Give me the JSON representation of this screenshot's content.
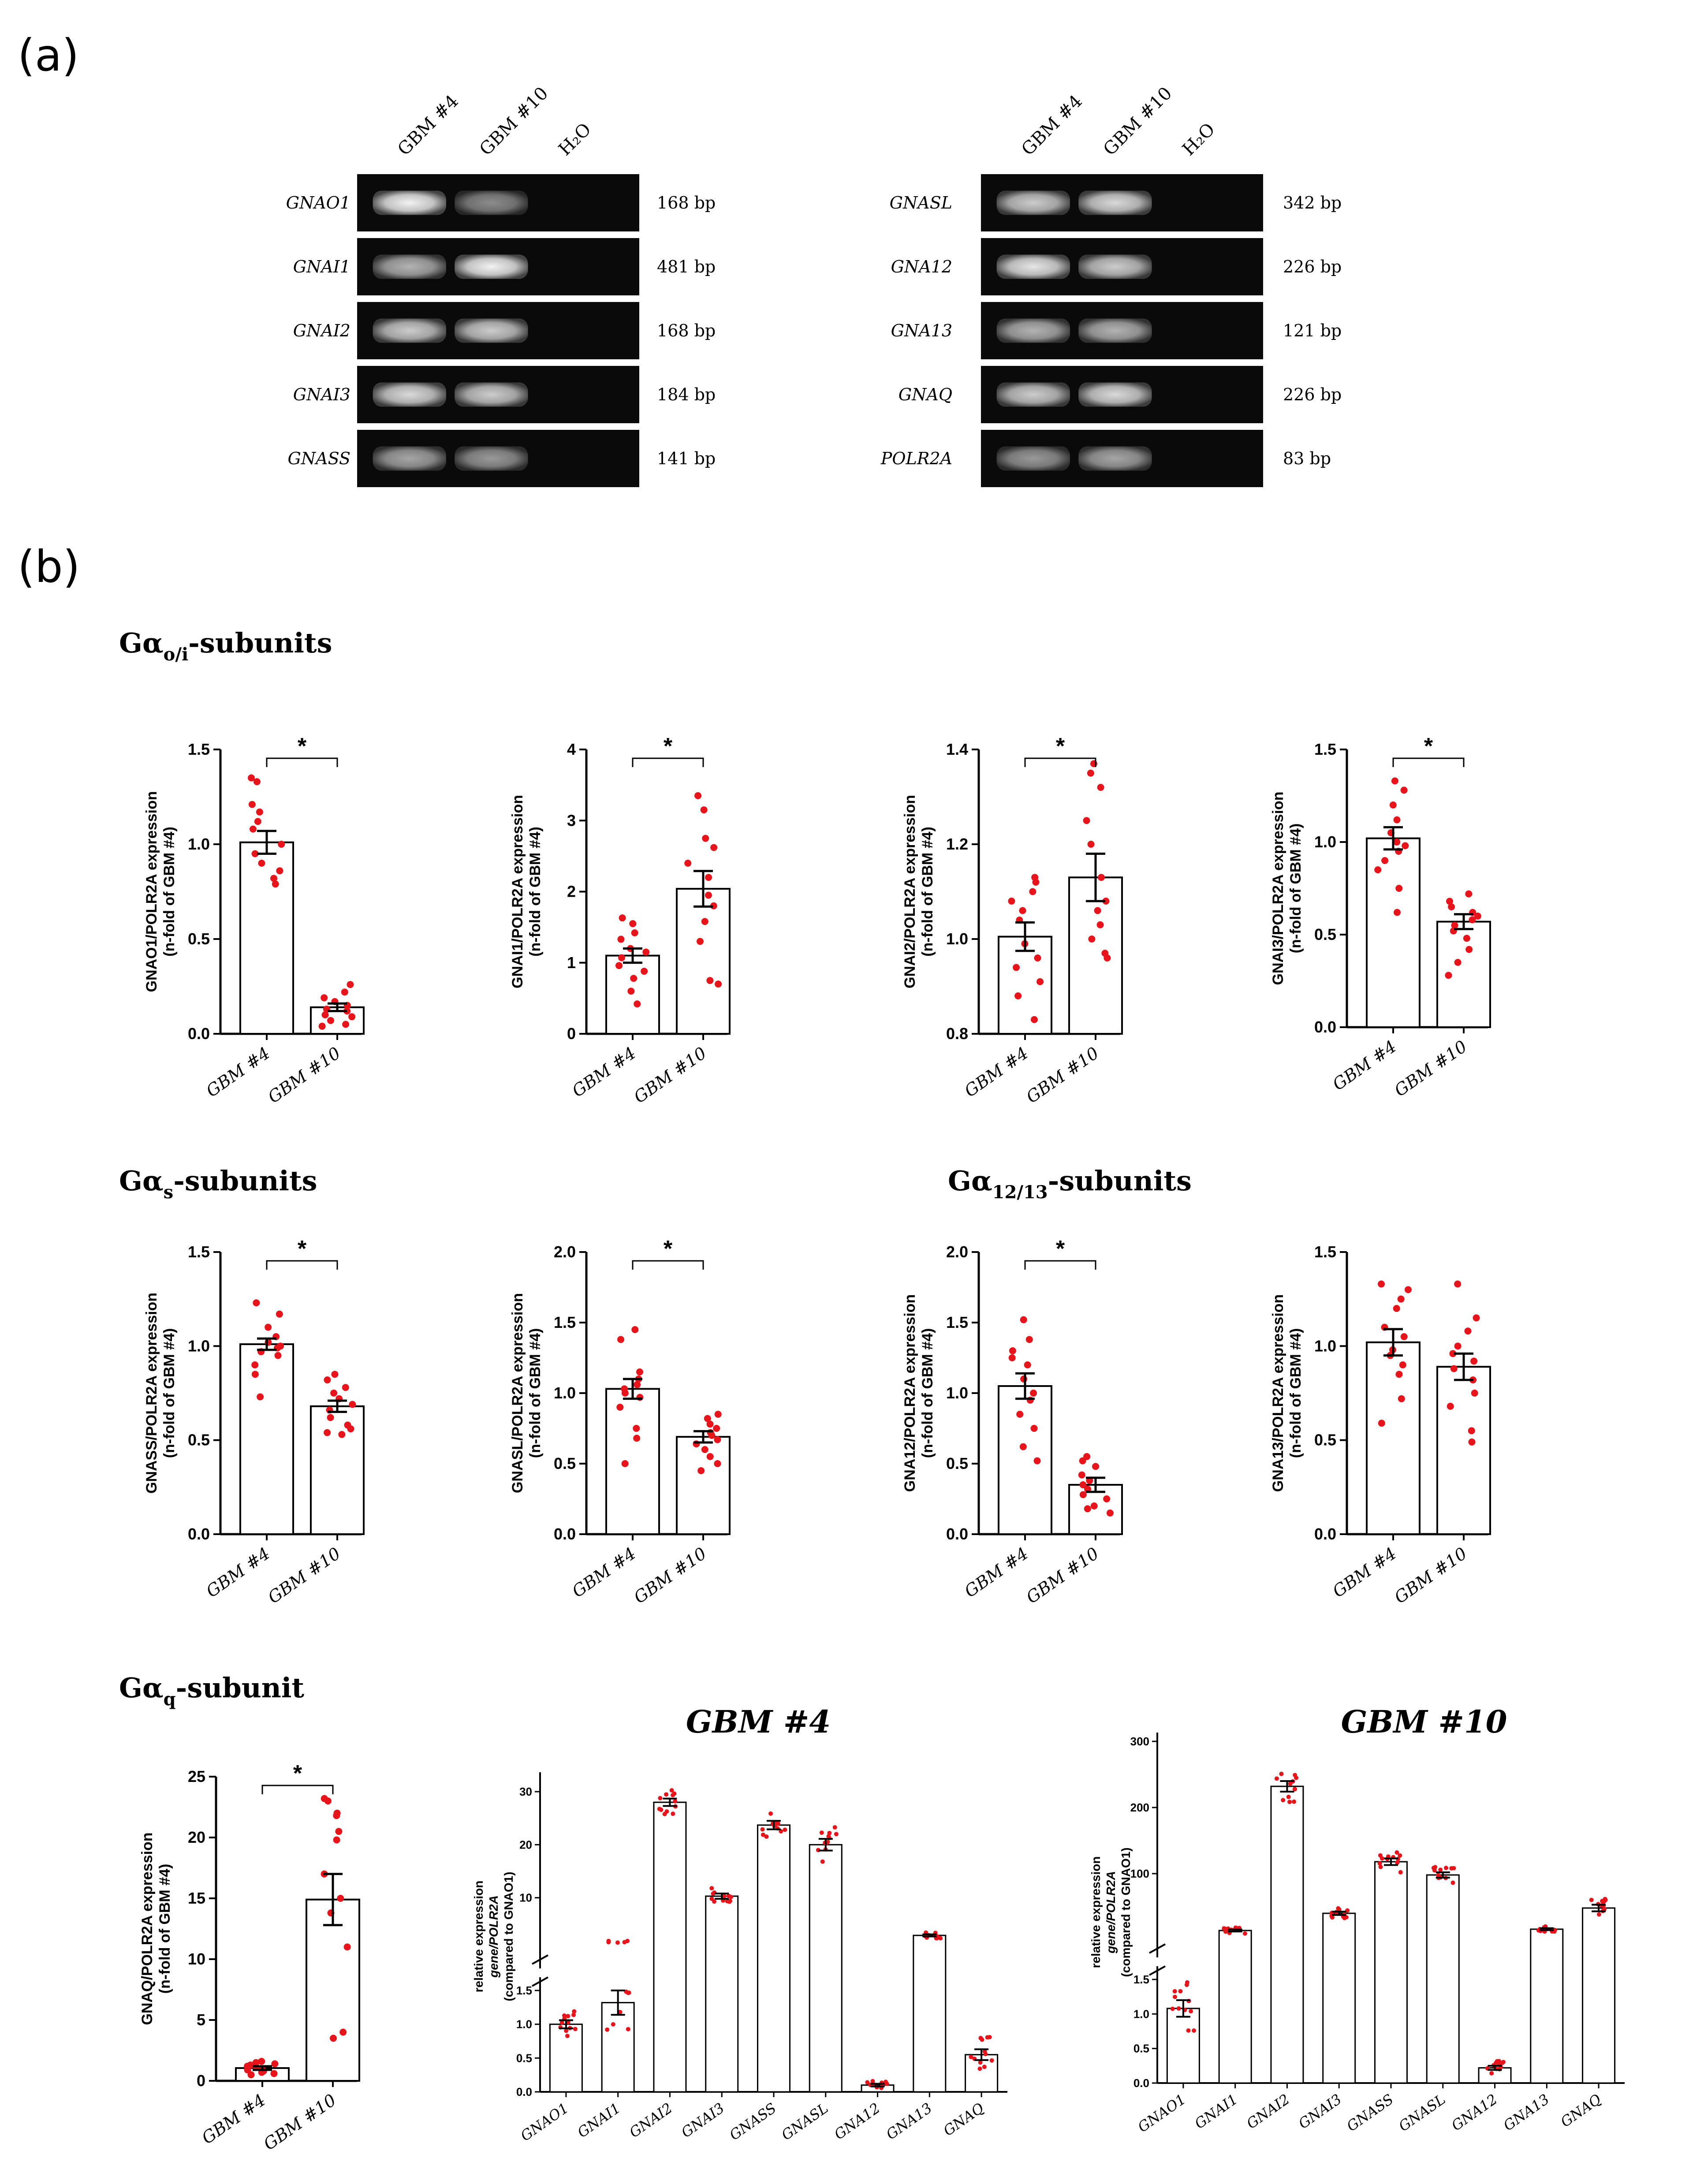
{
  "panels": {
    "a": "(a)",
    "b": "(b)"
  },
  "gel": {
    "lanes": [
      "GBM #4",
      "GBM #10",
      "H₂O"
    ],
    "left": [
      {
        "gene": "GNAO1",
        "bp": "168 bp",
        "bands": [
          0.95,
          0.55,
          0
        ]
      },
      {
        "gene": "GNAI1",
        "bp": "481 bp",
        "bands": [
          0.7,
          0.95,
          0
        ]
      },
      {
        "gene": "GNAI2",
        "bp": "168 bp",
        "bands": [
          0.8,
          0.8,
          0
        ]
      },
      {
        "gene": "GNAI3",
        "bp": "184 bp",
        "bands": [
          0.85,
          0.8,
          0
        ]
      },
      {
        "gene": "GNASS",
        "bp": "141 bp",
        "bands": [
          0.65,
          0.6,
          0
        ]
      }
    ],
    "right": [
      {
        "gene": "GNASL",
        "bp": "342 bp",
        "bands": [
          0.8,
          0.85,
          0
        ]
      },
      {
        "gene": "GNA12",
        "bp": "226 bp",
        "bands": [
          0.9,
          0.8,
          0
        ]
      },
      {
        "gene": "GNA13",
        "bp": "121 bp",
        "bands": [
          0.7,
          0.7,
          0
        ]
      },
      {
        "gene": "GNAQ",
        "bp": "226 bp",
        "bands": [
          0.8,
          0.85,
          0
        ]
      },
      {
        "gene": "POLR2A",
        "bp": "83 bp",
        "bands": [
          0.6,
          0.65,
          0
        ]
      }
    ]
  },
  "sections": {
    "oi": {
      "main": "Gα",
      "sub": "o/i",
      "tail": "-subunits"
    },
    "s": {
      "main": "Gα",
      "sub": "s",
      "tail": "-subunits"
    },
    "g1213": {
      "main": "Gα",
      "sub": "12/13",
      "tail": "-subunits"
    },
    "q": {
      "main": "Gα",
      "sub": "q",
      "tail": "-subunit"
    }
  },
  "chart_data": [
    {
      "type": "bar",
      "id": "gnao1",
      "gene": "GNAO1",
      "ylabel_gene": "GNAO1/POLR2A expression",
      "ylabel2": "(n-fold of GBM #4)",
      "categories": [
        "GBM #4",
        "GBM #10"
      ],
      "values": [
        1.01,
        0.14
      ],
      "sem": [
        0.06,
        0.02
      ],
      "ylim": [
        0,
        1.5
      ],
      "yticks": [
        0.0,
        0.5,
        1.0,
        1.5
      ],
      "significance": "*",
      "points": [
        [
          1.35,
          1.33,
          1.21,
          1.17,
          1.12,
          1.08,
          1.0,
          0.95,
          0.9,
          0.86,
          0.82,
          0.79
        ],
        [
          0.26,
          0.22,
          0.19,
          0.17,
          0.15,
          0.13,
          0.12,
          0.1,
          0.09,
          0.07,
          0.05,
          0.04
        ]
      ]
    },
    {
      "type": "bar",
      "id": "gnai1",
      "gene": "GNAI1",
      "ylabel_gene": "GNAI1/POLR2A expression",
      "ylabel2": "(n-fold of GBM #4)",
      "categories": [
        "GBM #4",
        "GBM #10"
      ],
      "values": [
        1.1,
        2.04
      ],
      "sem": [
        0.1,
        0.25
      ],
      "ylim": [
        0,
        4
      ],
      "yticks": [
        0,
        1,
        2,
        3,
        4
      ],
      "significance": "*",
      "points": [
        [
          1.63,
          1.55,
          1.42,
          1.33,
          1.2,
          1.15,
          1.07,
          0.96,
          0.88,
          0.78,
          0.6,
          0.42
        ],
        [
          3.35,
          3.15,
          2.75,
          2.62,
          2.4,
          2.2,
          1.95,
          1.8,
          1.58,
          1.3,
          0.75,
          0.7
        ]
      ]
    },
    {
      "type": "bar",
      "id": "gnai2",
      "gene": "GNAI2",
      "ylabel_gene": "GNAI2/POLR2A expression",
      "ylabel2": "(n-fold of GBM #4)",
      "categories": [
        "GBM #4",
        "GBM #10"
      ],
      "values": [
        1.005,
        1.13
      ],
      "sem": [
        0.03,
        0.05
      ],
      "ylim": [
        0.8,
        1.4
      ],
      "yticks": [
        0.8,
        1.0,
        1.2,
        1.4
      ],
      "significance": "*",
      "points": [
        [
          1.13,
          1.12,
          1.1,
          1.08,
          1.06,
          1.04,
          0.99,
          0.96,
          0.94,
          0.91,
          0.88,
          0.83
        ],
        [
          1.37,
          1.35,
          1.32,
          1.25,
          1.2,
          1.13,
          1.08,
          1.06,
          1.03,
          1.0,
          0.97,
          0.96
        ]
      ]
    },
    {
      "type": "bar",
      "id": "gnai3",
      "gene": "GNAI3",
      "ylabel_gene": "GNAI3/POLR2A expression",
      "ylabel2": "(n-fold of GBM #4)",
      "categories": [
        "GBM #4",
        "GBM #10"
      ],
      "values": [
        1.02,
        0.57
      ],
      "sem": [
        0.06,
        0.04
      ],
      "ylim": [
        0,
        1.5
      ],
      "yticks": [
        0.0,
        0.5,
        1.0,
        1.5
      ],
      "significance": "*",
      "points": [
        [
          1.33,
          1.28,
          1.2,
          1.12,
          1.05,
          1.0,
          0.98,
          0.95,
          0.9,
          0.85,
          0.75,
          0.62
        ],
        [
          0.72,
          0.68,
          0.65,
          0.62,
          0.6,
          0.58,
          0.55,
          0.52,
          0.48,
          0.42,
          0.35,
          0.28
        ]
      ]
    },
    {
      "type": "bar",
      "id": "gnass",
      "gene": "GNASS",
      "ylabel_gene": "GNASS/POLR2A expression",
      "ylabel2": "(n-fold of GBM #4)",
      "categories": [
        "GBM #4",
        "GBM #10"
      ],
      "values": [
        1.01,
        0.68
      ],
      "sem": [
        0.03,
        0.03
      ],
      "ylim": [
        0,
        1.5
      ],
      "yticks": [
        0.0,
        0.5,
        1.0,
        1.5
      ],
      "significance": "*",
      "points": [
        [
          1.23,
          1.17,
          1.1,
          1.05,
          1.02,
          1.0,
          0.99,
          0.97,
          0.95,
          0.9,
          0.85,
          0.73
        ],
        [
          0.85,
          0.82,
          0.78,
          0.75,
          0.72,
          0.69,
          0.66,
          0.62,
          0.58,
          0.56,
          0.54,
          0.53
        ]
      ]
    },
    {
      "type": "bar",
      "id": "gnasl",
      "gene": "GNASL",
      "ylabel_gene": "GNASL/POLR2A expression",
      "ylabel2": "(n-fold of GBM #4)",
      "categories": [
        "GBM #4",
        "GBM #10"
      ],
      "values": [
        1.03,
        0.69
      ],
      "sem": [
        0.07,
        0.04
      ],
      "ylim": [
        0,
        2.0
      ],
      "yticks": [
        0.0,
        0.5,
        1.0,
        1.5,
        2.0
      ],
      "significance": "*",
      "points": [
        [
          1.45,
          1.38,
          1.15,
          1.1,
          1.06,
          1.03,
          1.0,
          0.97,
          0.9,
          0.75,
          0.68,
          0.5
        ],
        [
          0.85,
          0.82,
          0.78,
          0.75,
          0.72,
          0.7,
          0.67,
          0.64,
          0.6,
          0.55,
          0.5,
          0.45
        ]
      ]
    },
    {
      "type": "bar",
      "id": "gna12",
      "gene": "GNA12",
      "ylabel_gene": "GNA12/POLR2A expression",
      "ylabel2": "(n-fold of GBM #4)",
      "categories": [
        "GBM #4",
        "GBM #10"
      ],
      "values": [
        1.05,
        0.35
      ],
      "sem": [
        0.09,
        0.05
      ],
      "ylim": [
        0,
        2.0
      ],
      "yticks": [
        0.0,
        0.5,
        1.0,
        1.5,
        2.0
      ],
      "significance": "*",
      "points": [
        [
          1.52,
          1.38,
          1.3,
          1.25,
          1.2,
          1.1,
          1.0,
          0.95,
          0.85,
          0.75,
          0.62,
          0.52
        ],
        [
          0.55,
          0.52,
          0.48,
          0.42,
          0.38,
          0.35,
          0.32,
          0.28,
          0.25,
          0.2,
          0.18,
          0.15
        ]
      ]
    },
    {
      "type": "bar",
      "id": "gna13",
      "gene": "GNA13",
      "ylabel_gene": "GNA13/POLR2A expression",
      "ylabel2": "(n-fold of GBM #4)",
      "categories": [
        "GBM #4",
        "GBM #10"
      ],
      "values": [
        1.02,
        0.89
      ],
      "sem": [
        0.07,
        0.07
      ],
      "ylim": [
        0,
        1.5
      ],
      "yticks": [
        0.0,
        0.5,
        1.0,
        1.5
      ],
      "significance": "",
      "points": [
        [
          1.33,
          1.3,
          1.25,
          1.2,
          1.1,
          1.05,
          0.98,
          0.95,
          0.9,
          0.85,
          0.72,
          0.59
        ],
        [
          1.33,
          1.15,
          1.08,
          1.0,
          0.96,
          0.92,
          0.88,
          0.82,
          0.75,
          0.68,
          0.55,
          0.49
        ]
      ]
    },
    {
      "type": "bar",
      "id": "gnaq",
      "gene": "GNAQ",
      "ylabel_gene": "GNAQ/POLR2A expression",
      "ylabel2": "(n-fold of GBM #4)",
      "categories": [
        "GBM #4",
        "GBM #10"
      ],
      "values": [
        1.05,
        14.9
      ],
      "sem": [
        0.15,
        2.1
      ],
      "ylim": [
        0,
        25
      ],
      "yticks": [
        0,
        5,
        10,
        15,
        20,
        25
      ],
      "significance": "*",
      "points": [
        [
          1.6,
          1.5,
          1.4,
          1.3,
          1.2,
          1.1,
          1.0,
          0.9,
          0.8,
          0.7,
          0.6,
          0.5
        ],
        [
          23.2,
          23.0,
          22.0,
          21.8,
          20.5,
          19.8,
          17.0,
          15.0,
          13.8,
          11.0,
          4.0,
          3.5
        ]
      ]
    },
    {
      "type": "bar",
      "id": "gbm4",
      "title": "GBM #4",
      "ylabel": [
        "relative expression",
        "gene/POLR2A",
        "(compared to GNAO1)"
      ],
      "categories": [
        "GNAO1",
        "GNAI1",
        "GNAI2",
        "GNAI3",
        "GNASS",
        "GNASL",
        "GNA12",
        "GNA13",
        "GNAQ"
      ],
      "values": [
        1.0,
        1.32,
        28.0,
        10.3,
        23.7,
        20.0,
        0.1,
        2.9,
        0.55
      ],
      "sem": [
        0.06,
        0.18,
        0.7,
        0.5,
        0.8,
        1.1,
        0.02,
        0.2,
        0.08
      ],
      "lower_ylim": [
        0,
        1.5
      ],
      "lower_ticks": [
        0.0,
        0.5,
        1.0,
        1.5
      ],
      "upper_ylim": [
        0,
        32
      ],
      "upper_ticks": [
        10,
        20,
        30
      ],
      "broken_axis": true
    },
    {
      "type": "bar",
      "id": "gbm10",
      "title": "GBM #10",
      "ylabel": [
        "relative expression",
        "gene/POLR2A",
        "(compared to GNAO1)"
      ],
      "categories": [
        "GNAO1",
        "GNAI1",
        "GNAI2",
        "GNAI3",
        "GNASS",
        "GNASL",
        "GNA12",
        "GNA13",
        "GNAQ"
      ],
      "values": [
        1.08,
        14,
        232,
        40,
        118,
        98,
        0.22,
        16,
        48
      ],
      "sem": [
        0.12,
        1.5,
        8,
        2.5,
        5,
        4,
        0.03,
        1.5,
        5
      ],
      "lower_ylim": [
        0,
        1.5
      ],
      "lower_ticks": [
        0.0,
        0.5,
        1.0,
        1.5
      ],
      "upper_ylim": [
        0,
        300
      ],
      "upper_ticks": [
        100,
        200,
        300
      ],
      "broken_axis": true
    }
  ]
}
